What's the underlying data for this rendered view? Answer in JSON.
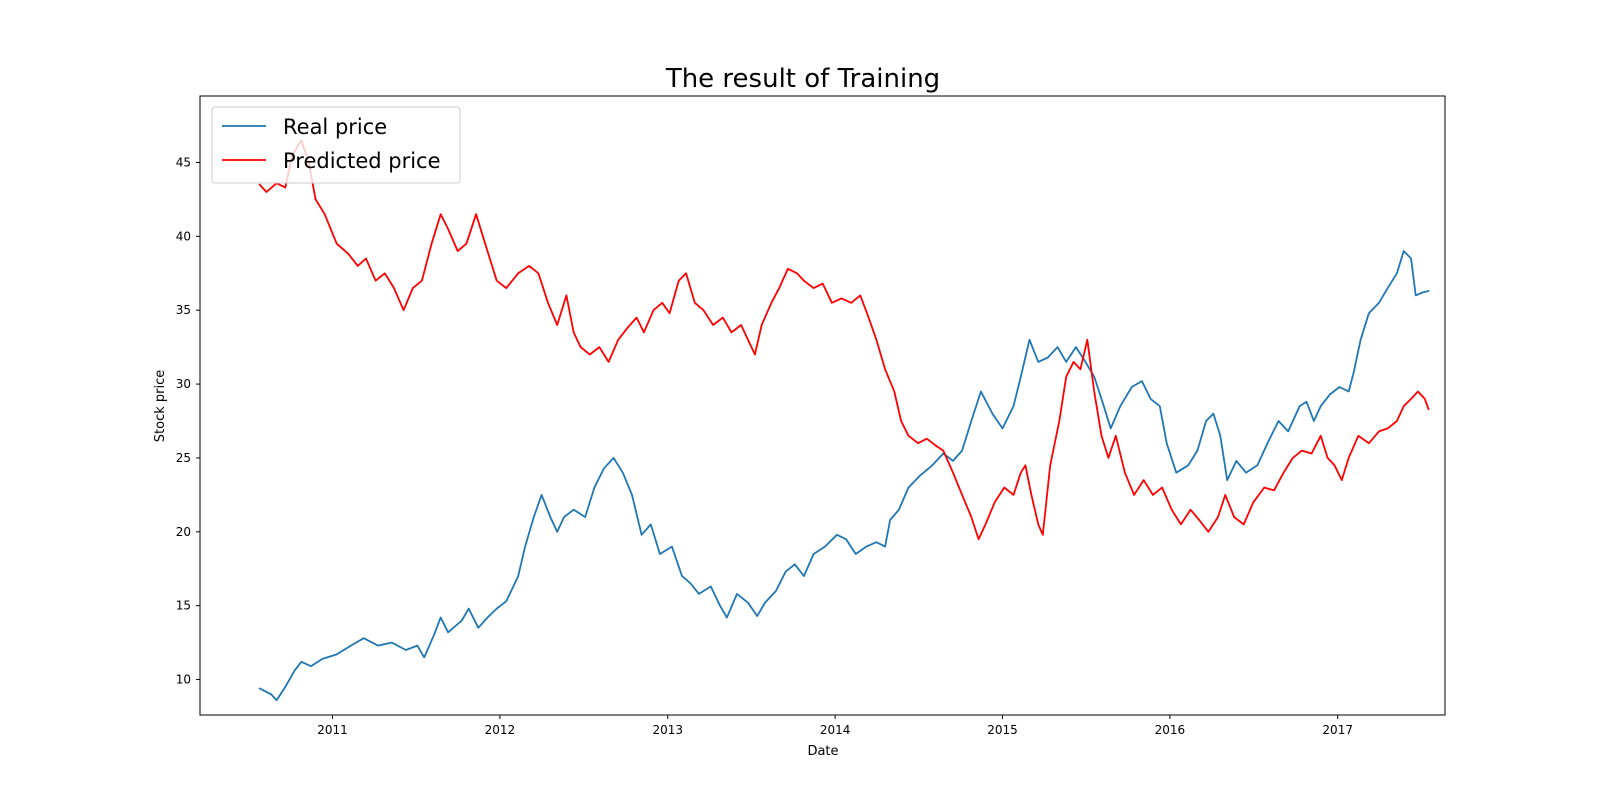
{
  "chart_data": {
    "type": "line",
    "title": "The result of Training",
    "xlabel": "Date",
    "ylabel": "Stock price",
    "xlim": [
      "2010-03-18",
      "2017-08-23"
    ],
    "ylim": [
      7.6,
      49.5
    ],
    "xticks": [
      {
        "date": "2011-01-01",
        "label": "2011"
      },
      {
        "date": "2012-01-01",
        "label": "2012"
      },
      {
        "date": "2013-01-01",
        "label": "2013"
      },
      {
        "date": "2014-01-01",
        "label": "2014"
      },
      {
        "date": "2015-01-01",
        "label": "2015"
      },
      {
        "date": "2016-01-01",
        "label": "2016"
      },
      {
        "date": "2017-01-01",
        "label": "2017"
      }
    ],
    "yticks": [
      10,
      15,
      20,
      25,
      30,
      35,
      40,
      45
    ],
    "grid": false,
    "legend_position": "top-left",
    "series": [
      {
        "name": "Real price",
        "color": "#1f77b4",
        "points": [
          [
            "2010-07-26",
            9.4
          ],
          [
            "2010-08-20",
            9.0
          ],
          [
            "2010-09-01",
            8.6
          ],
          [
            "2010-09-20",
            9.5
          ],
          [
            "2010-10-10",
            10.6
          ],
          [
            "2010-10-25",
            11.2
          ],
          [
            "2010-11-15",
            10.9
          ],
          [
            "2010-12-10",
            11.4
          ],
          [
            "2011-01-10",
            11.7
          ],
          [
            "2011-02-10",
            12.3
          ],
          [
            "2011-03-10",
            12.8
          ],
          [
            "2011-04-10",
            12.3
          ],
          [
            "2011-05-10",
            12.5
          ],
          [
            "2011-06-10",
            12.0
          ],
          [
            "2011-07-05",
            12.3
          ],
          [
            "2011-07-20",
            11.5
          ],
          [
            "2011-08-10",
            13.0
          ],
          [
            "2011-08-25",
            14.2
          ],
          [
            "2011-09-10",
            13.2
          ],
          [
            "2011-10-10",
            14.0
          ],
          [
            "2011-10-25",
            14.8
          ],
          [
            "2011-11-15",
            13.5
          ],
          [
            "2011-12-05",
            14.2
          ],
          [
            "2011-12-25",
            14.8
          ],
          [
            "2012-01-15",
            15.3
          ],
          [
            "2012-02-10",
            17.0
          ],
          [
            "2012-02-25",
            19.0
          ],
          [
            "2012-03-15",
            21.0
          ],
          [
            "2012-04-01",
            22.5
          ],
          [
            "2012-04-20",
            21.0
          ],
          [
            "2012-05-05",
            20.0
          ],
          [
            "2012-05-20",
            21.0
          ],
          [
            "2012-06-10",
            21.5
          ],
          [
            "2012-07-05",
            21.0
          ],
          [
            "2012-07-25",
            23.0
          ],
          [
            "2012-08-15",
            24.3
          ],
          [
            "2012-09-05",
            25.0
          ],
          [
            "2012-09-25",
            24.0
          ],
          [
            "2012-10-15",
            22.5
          ],
          [
            "2012-11-05",
            19.8
          ],
          [
            "2012-11-25",
            20.5
          ],
          [
            "2012-12-15",
            18.5
          ],
          [
            "2013-01-10",
            19.0
          ],
          [
            "2013-02-01",
            17.0
          ],
          [
            "2013-02-20",
            16.5
          ],
          [
            "2013-03-10",
            15.8
          ],
          [
            "2013-04-05",
            16.3
          ],
          [
            "2013-04-25",
            15.0
          ],
          [
            "2013-05-10",
            14.2
          ],
          [
            "2013-06-01",
            15.8
          ],
          [
            "2013-06-25",
            15.2
          ],
          [
            "2013-07-15",
            14.3
          ],
          [
            "2013-08-01",
            15.2
          ],
          [
            "2013-08-25",
            16.0
          ],
          [
            "2013-09-15",
            17.3
          ],
          [
            "2013-10-05",
            17.8
          ],
          [
            "2013-10-25",
            17.0
          ],
          [
            "2013-11-15",
            18.5
          ],
          [
            "2013-12-10",
            19.0
          ],
          [
            "2014-01-05",
            19.8
          ],
          [
            "2014-01-25",
            19.5
          ],
          [
            "2014-02-15",
            18.5
          ],
          [
            "2014-03-10",
            19.0
          ],
          [
            "2014-04-01",
            19.3
          ],
          [
            "2014-04-20",
            19.0
          ],
          [
            "2014-05-01",
            20.8
          ],
          [
            "2014-05-20",
            21.5
          ],
          [
            "2014-06-10",
            23.0
          ],
          [
            "2014-07-05",
            23.8
          ],
          [
            "2014-08-01",
            24.5
          ],
          [
            "2014-08-25",
            25.3
          ],
          [
            "2014-09-15",
            24.8
          ],
          [
            "2014-10-05",
            25.5
          ],
          [
            "2014-10-25",
            27.5
          ],
          [
            "2014-11-15",
            29.5
          ],
          [
            "2014-12-10",
            28.0
          ],
          [
            "2015-01-01",
            27.0
          ],
          [
            "2015-01-25",
            28.5
          ],
          [
            "2015-02-10",
            30.5
          ],
          [
            "2015-03-01",
            33.0
          ],
          [
            "2015-03-20",
            31.5
          ],
          [
            "2015-04-10",
            31.8
          ],
          [
            "2015-05-01",
            32.5
          ],
          [
            "2015-05-20",
            31.5
          ],
          [
            "2015-06-10",
            32.5
          ],
          [
            "2015-07-01",
            31.5
          ],
          [
            "2015-07-20",
            30.5
          ],
          [
            "2015-08-10",
            28.5
          ],
          [
            "2015-08-25",
            27.0
          ],
          [
            "2015-09-15",
            28.5
          ],
          [
            "2015-10-10",
            29.8
          ],
          [
            "2015-11-01",
            30.2
          ],
          [
            "2015-11-20",
            29.0
          ],
          [
            "2015-12-10",
            28.5
          ],
          [
            "2015-12-25",
            26.0
          ],
          [
            "2016-01-15",
            24.0
          ],
          [
            "2016-02-10",
            24.5
          ],
          [
            "2016-03-01",
            25.5
          ],
          [
            "2016-03-20",
            27.5
          ],
          [
            "2016-04-05",
            28.0
          ],
          [
            "2016-04-20",
            26.5
          ],
          [
            "2016-05-05",
            23.5
          ],
          [
            "2016-05-25",
            24.8
          ],
          [
            "2016-06-15",
            24.0
          ],
          [
            "2016-07-10",
            24.5
          ],
          [
            "2016-08-01",
            26.0
          ],
          [
            "2016-08-25",
            27.5
          ],
          [
            "2016-09-15",
            26.8
          ],
          [
            "2016-10-10",
            28.5
          ],
          [
            "2016-10-25",
            28.8
          ],
          [
            "2016-11-10",
            27.5
          ],
          [
            "2016-11-25",
            28.5
          ],
          [
            "2016-12-15",
            29.3
          ],
          [
            "2017-01-05",
            29.8
          ],
          [
            "2017-01-25",
            29.5
          ],
          [
            "2017-02-05",
            30.8
          ],
          [
            "2017-02-20",
            33.0
          ],
          [
            "2017-03-10",
            34.8
          ],
          [
            "2017-04-01",
            35.5
          ],
          [
            "2017-04-20",
            36.5
          ],
          [
            "2017-05-10",
            37.5
          ],
          [
            "2017-05-25",
            39.0
          ],
          [
            "2017-06-10",
            38.5
          ],
          [
            "2017-06-20",
            36.0
          ],
          [
            "2017-07-05",
            36.2
          ],
          [
            "2017-07-18",
            36.3
          ]
        ]
      },
      {
        "name": "Predicted price",
        "color": "#ff0000",
        "points": [
          [
            "2010-07-26",
            43.5
          ],
          [
            "2010-08-10",
            43.0
          ],
          [
            "2010-09-01",
            43.6
          ],
          [
            "2010-09-20",
            43.3
          ],
          [
            "2010-10-05",
            45.5
          ],
          [
            "2010-10-25",
            46.5
          ],
          [
            "2010-11-10",
            45.0
          ],
          [
            "2010-11-25",
            42.5
          ],
          [
            "2010-12-15",
            41.5
          ],
          [
            "2011-01-10",
            39.5
          ],
          [
            "2011-02-05",
            38.8
          ],
          [
            "2011-02-25",
            38.0
          ],
          [
            "2011-03-15",
            38.5
          ],
          [
            "2011-04-05",
            37.0
          ],
          [
            "2011-04-25",
            37.5
          ],
          [
            "2011-05-15",
            36.5
          ],
          [
            "2011-06-05",
            35.0
          ],
          [
            "2011-06-25",
            36.5
          ],
          [
            "2011-07-15",
            37.0
          ],
          [
            "2011-08-05",
            39.5
          ],
          [
            "2011-08-25",
            41.5
          ],
          [
            "2011-09-10",
            40.5
          ],
          [
            "2011-10-01",
            39.0
          ],
          [
            "2011-10-20",
            39.5
          ],
          [
            "2011-11-10",
            41.5
          ],
          [
            "2011-11-25",
            40.0
          ],
          [
            "2011-12-10",
            38.5
          ],
          [
            "2011-12-25",
            37.0
          ],
          [
            "2012-01-15",
            36.5
          ],
          [
            "2012-02-10",
            37.5
          ],
          [
            "2012-03-05",
            38.0
          ],
          [
            "2012-03-25",
            37.5
          ],
          [
            "2012-04-15",
            35.5
          ],
          [
            "2012-05-05",
            34.0
          ],
          [
            "2012-05-25",
            36.0
          ],
          [
            "2012-06-10",
            33.5
          ],
          [
            "2012-06-25",
            32.5
          ],
          [
            "2012-07-15",
            32.0
          ],
          [
            "2012-08-05",
            32.5
          ],
          [
            "2012-08-25",
            31.5
          ],
          [
            "2012-09-15",
            33.0
          ],
          [
            "2012-10-05",
            33.8
          ],
          [
            "2012-10-25",
            34.5
          ],
          [
            "2012-11-10",
            33.5
          ],
          [
            "2012-12-01",
            35.0
          ],
          [
            "2012-12-20",
            35.5
          ],
          [
            "2013-01-05",
            34.8
          ],
          [
            "2013-01-25",
            37.0
          ],
          [
            "2013-02-10",
            37.5
          ],
          [
            "2013-03-01",
            35.5
          ],
          [
            "2013-03-20",
            35.0
          ],
          [
            "2013-04-10",
            34.0
          ],
          [
            "2013-05-01",
            34.5
          ],
          [
            "2013-05-20",
            33.5
          ],
          [
            "2013-06-10",
            34.0
          ],
          [
            "2013-06-25",
            33.0
          ],
          [
            "2013-07-10",
            32.0
          ],
          [
            "2013-07-25",
            34.0
          ],
          [
            "2013-08-15",
            35.5
          ],
          [
            "2013-09-01",
            36.5
          ],
          [
            "2013-09-20",
            37.8
          ],
          [
            "2013-10-10",
            37.5
          ],
          [
            "2013-10-25",
            37.0
          ],
          [
            "2013-11-15",
            36.5
          ],
          [
            "2013-12-05",
            36.8
          ],
          [
            "2013-12-25",
            35.5
          ],
          [
            "2014-01-15",
            35.8
          ],
          [
            "2014-02-05",
            35.5
          ],
          [
            "2014-02-25",
            36.0
          ],
          [
            "2014-03-15",
            34.5
          ],
          [
            "2014-04-01",
            33.0
          ],
          [
            "2014-04-20",
            31.0
          ],
          [
            "2014-05-10",
            29.5
          ],
          [
            "2014-05-25",
            27.5
          ],
          [
            "2014-06-10",
            26.5
          ],
          [
            "2014-07-01",
            26.0
          ],
          [
            "2014-07-20",
            26.3
          ],
          [
            "2014-08-10",
            25.8
          ],
          [
            "2014-08-25",
            25.5
          ],
          [
            "2014-09-15",
            24.0
          ],
          [
            "2014-10-05",
            22.5
          ],
          [
            "2014-10-25",
            21.0
          ],
          [
            "2014-11-10",
            19.5
          ],
          [
            "2014-11-25",
            20.5
          ],
          [
            "2014-12-15",
            22.0
          ],
          [
            "2015-01-05",
            23.0
          ],
          [
            "2015-01-25",
            22.5
          ],
          [
            "2015-02-10",
            24.0
          ],
          [
            "2015-02-20",
            24.5
          ],
          [
            "2015-03-05",
            22.5
          ],
          [
            "2015-03-20",
            20.5
          ],
          [
            "2015-03-30",
            19.8
          ],
          [
            "2015-04-15",
            24.5
          ],
          [
            "2015-05-05",
            27.5
          ],
          [
            "2015-05-20",
            30.5
          ],
          [
            "2015-06-05",
            31.5
          ],
          [
            "2015-06-20",
            31.0
          ],
          [
            "2015-07-05",
            33.0
          ],
          [
            "2015-07-20",
            29.5
          ],
          [
            "2015-08-05",
            26.5
          ],
          [
            "2015-08-20",
            25.0
          ],
          [
            "2015-09-05",
            26.5
          ],
          [
            "2015-09-25",
            24.0
          ],
          [
            "2015-10-15",
            22.5
          ],
          [
            "2015-11-05",
            23.5
          ],
          [
            "2015-11-25",
            22.5
          ],
          [
            "2015-12-15",
            23.0
          ],
          [
            "2016-01-05",
            21.5
          ],
          [
            "2016-01-25",
            20.5
          ],
          [
            "2016-02-15",
            21.5
          ],
          [
            "2016-03-05",
            20.8
          ],
          [
            "2016-03-25",
            20.0
          ],
          [
            "2016-04-15",
            21.0
          ],
          [
            "2016-05-01",
            22.5
          ],
          [
            "2016-05-20",
            21.0
          ],
          [
            "2016-06-10",
            20.5
          ],
          [
            "2016-07-01",
            22.0
          ],
          [
            "2016-07-25",
            23.0
          ],
          [
            "2016-08-15",
            22.8
          ],
          [
            "2016-09-05",
            24.0
          ],
          [
            "2016-09-25",
            25.0
          ],
          [
            "2016-10-15",
            25.5
          ],
          [
            "2016-11-05",
            25.3
          ],
          [
            "2016-11-25",
            26.5
          ],
          [
            "2016-12-10",
            25.0
          ],
          [
            "2016-12-25",
            24.5
          ],
          [
            "2017-01-10",
            23.5
          ],
          [
            "2017-01-25",
            25.0
          ],
          [
            "2017-02-15",
            26.5
          ],
          [
            "2017-03-10",
            26.0
          ],
          [
            "2017-04-01",
            26.8
          ],
          [
            "2017-04-20",
            27.0
          ],
          [
            "2017-05-10",
            27.5
          ],
          [
            "2017-05-25",
            28.5
          ],
          [
            "2017-06-10",
            29.0
          ],
          [
            "2017-06-25",
            29.5
          ],
          [
            "2017-07-10",
            29.0
          ],
          [
            "2017-07-18",
            28.3
          ]
        ]
      }
    ]
  }
}
